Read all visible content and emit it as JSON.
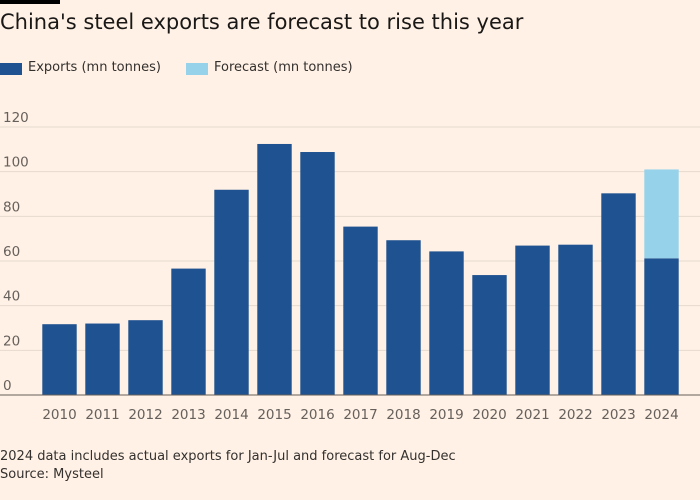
{
  "chart_data": {
    "type": "bar",
    "stacked": true,
    "title": "China's steel exports are forecast to rise this year",
    "xlabel": "",
    "ylabel": "",
    "ylim": [
      0,
      120
    ],
    "yticks": [
      0,
      20,
      40,
      60,
      80,
      100,
      120
    ],
    "grid": true,
    "legend_position": "top-left",
    "categories": [
      "2010",
      "2011",
      "2012",
      "2013",
      "2014",
      "2015",
      "2016",
      "2017",
      "2018",
      "2019",
      "2020",
      "2021",
      "2022",
      "2023",
      "2024"
    ],
    "series": [
      {
        "name": "Exports (mn tonnes)",
        "color": "#1F5290",
        "values": [
          31.7,
          32,
          33.5,
          56.6,
          91.9,
          112.4,
          108.8,
          75.4,
          69.3,
          64.3,
          53.7,
          66.9,
          67.3,
          90.3,
          61.2
        ]
      },
      {
        "name": "Forecast (mn tonnes)",
        "color": "#96D3EB",
        "values": [
          0,
          0,
          0,
          0,
          0,
          0,
          0,
          0,
          0,
          0,
          0,
          0,
          0,
          0,
          39.8
        ]
      }
    ]
  },
  "notes": {
    "footnote": "2024 data includes actual exports for Jan-Jul and forecast for Aug-Dec",
    "source": "Source: Mysteel"
  }
}
